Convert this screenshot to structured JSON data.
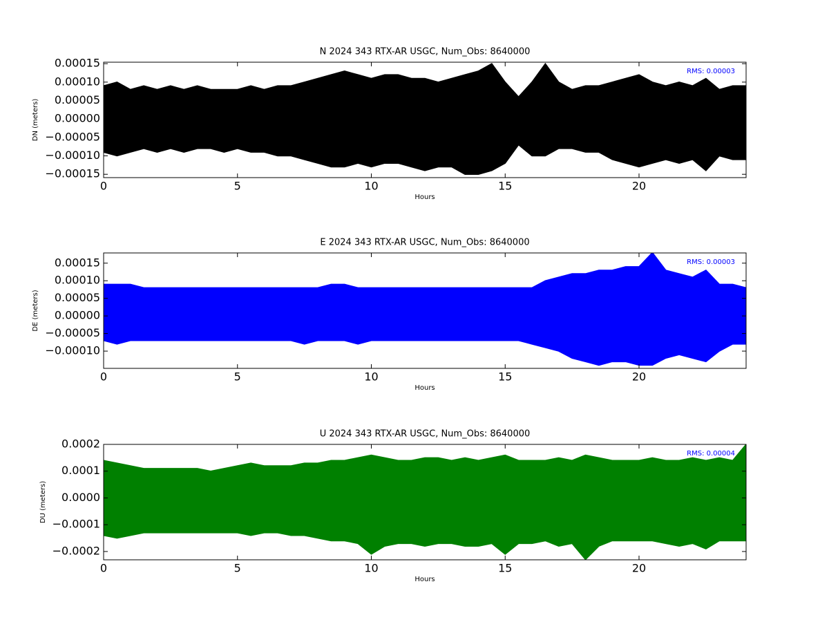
{
  "chart_data": [
    {
      "type": "line",
      "title": "N 2024 343 RTX-AR  USGC, Num_Obs: 8640000",
      "xlabel": "Hours",
      "ylabel": "DN (meters)",
      "annotation": "RMS:  0.00003",
      "x": [
        0,
        0.5,
        1,
        1.5,
        2,
        2.5,
        3,
        3.5,
        4,
        4.5,
        5,
        5.5,
        6,
        6.5,
        7,
        7.5,
        8,
        8.5,
        9,
        9.5,
        10,
        10.5,
        11,
        11.5,
        12,
        12.5,
        13,
        13.5,
        14,
        14.5,
        15,
        15.5,
        16,
        16.5,
        17,
        17.5,
        18,
        18.5,
        19,
        19.5,
        20,
        20.5,
        21,
        21.5,
        22,
        22.5,
        23,
        23.5,
        24
      ],
      "series": [
        {
          "color": "#000000",
          "values": [
            9e-05,
            0.0001,
            8e-05,
            9e-05,
            8e-05,
            9e-05,
            8e-05,
            9e-05,
            8e-05,
            8e-05,
            8e-05,
            9e-05,
            8e-05,
            9e-05,
            9e-05,
            0.0001,
            0.00011,
            0.00012,
            0.00013,
            0.00012,
            0.00011,
            0.00012,
            0.00012,
            0.00011,
            0.00011,
            0.0001,
            0.00011,
            0.00012,
            0.00013,
            0.00015,
            0.0001,
            6e-05,
            0.0001,
            0.00015,
            0.0001,
            8e-05,
            9e-05,
            9e-05,
            0.0001,
            0.00011,
            0.00012,
            0.0001,
            9e-05,
            0.0001,
            9e-05,
            0.00011,
            8e-05,
            9e-05,
            9e-05
          ]
        },
        {
          "color": "#000000",
          "values": [
            -9e-05,
            -0.0001,
            -9e-05,
            -8e-05,
            -9e-05,
            -8e-05,
            -9e-05,
            -8e-05,
            -8e-05,
            -9e-05,
            -8e-05,
            -9e-05,
            -9e-05,
            -0.0001,
            -0.0001,
            -0.00011,
            -0.00012,
            -0.00013,
            -0.00013,
            -0.00012,
            -0.00013,
            -0.00012,
            -0.00012,
            -0.00013,
            -0.00014,
            -0.00013,
            -0.00013,
            -0.00015,
            -0.00015,
            -0.00014,
            -0.00012,
            -7e-05,
            -0.0001,
            -0.0001,
            -8e-05,
            -8e-05,
            -9e-05,
            -9e-05,
            -0.00011,
            -0.00012,
            -0.00013,
            -0.00012,
            -0.00011,
            -0.00012,
            -0.00011,
            -0.00014,
            -0.0001,
            -0.00011,
            -0.00011
          ]
        }
      ],
      "xlim": [
        0,
        24
      ],
      "ylim": [
        -0.000159,
        0.000154
      ],
      "xticks": [
        0,
        5,
        10,
        15,
        20
      ],
      "yticks": [
        {
          "value": -0.00015,
          "label": "−0.00015"
        },
        {
          "value": -0.0001,
          "label": "−0.00010"
        },
        {
          "value": -5e-05,
          "label": "−0.00005"
        },
        {
          "value": 0,
          "label": "0.00000"
        },
        5e-05,
        {
          "value": 0.0001,
          "label": "0.00010"
        },
        0.00015
      ]
    },
    {
      "type": "line",
      "title": "E 2024 343 RTX-AR  USGC, Num_Obs: 8640000",
      "xlabel": "Hours",
      "ylabel": "DE (meters)",
      "annotation": "RMS:  0.00003",
      "x": [
        0,
        0.5,
        1,
        1.5,
        2,
        2.5,
        3,
        3.5,
        4,
        4.5,
        5,
        5.5,
        6,
        6.5,
        7,
        7.5,
        8,
        8.5,
        9,
        9.5,
        10,
        10.5,
        11,
        11.5,
        12,
        12.5,
        13,
        13.5,
        14,
        14.5,
        15,
        15.5,
        16,
        16.5,
        17,
        17.5,
        18,
        18.5,
        19,
        19.5,
        20,
        20.5,
        21,
        21.5,
        22,
        22.5,
        23,
        23.5,
        24
      ],
      "series": [
        {
          "color": "#0000ff",
          "values": [
            9e-05,
            9e-05,
            9e-05,
            8e-05,
            8e-05,
            8e-05,
            8e-05,
            8e-05,
            8e-05,
            8e-05,
            8e-05,
            8e-05,
            8e-05,
            8e-05,
            8e-05,
            8e-05,
            8e-05,
            9e-05,
            9e-05,
            8e-05,
            8e-05,
            8e-05,
            8e-05,
            8e-05,
            8e-05,
            8e-05,
            8e-05,
            8e-05,
            8e-05,
            8e-05,
            8e-05,
            8e-05,
            8e-05,
            0.0001,
            0.00011,
            0.00012,
            0.00012,
            0.00013,
            0.00013,
            0.00014,
            0.00014,
            0.00018,
            0.00013,
            0.00012,
            0.00011,
            0.00013,
            9e-05,
            9e-05,
            8e-05
          ]
        },
        {
          "color": "#0000ff",
          "values": [
            -7e-05,
            -8e-05,
            -7e-05,
            -7e-05,
            -7e-05,
            -7e-05,
            -7e-05,
            -7e-05,
            -7e-05,
            -7e-05,
            -7e-05,
            -7e-05,
            -7e-05,
            -7e-05,
            -7e-05,
            -8e-05,
            -7e-05,
            -7e-05,
            -7e-05,
            -8e-05,
            -7e-05,
            -7e-05,
            -7e-05,
            -7e-05,
            -7e-05,
            -7e-05,
            -7e-05,
            -7e-05,
            -7e-05,
            -7e-05,
            -7e-05,
            -7e-05,
            -8e-05,
            -9e-05,
            -0.0001,
            -0.00012,
            -0.00013,
            -0.00014,
            -0.00013,
            -0.00013,
            -0.00014,
            -0.00014,
            -0.00012,
            -0.00011,
            -0.00012,
            -0.00013,
            -0.0001,
            -8e-05,
            -8e-05
          ]
        }
      ],
      "xlim": [
        0,
        24
      ],
      "ylim": [
        -0.000149,
        0.000179
      ],
      "xticks": [
        0,
        5,
        10,
        15,
        20
      ],
      "yticks": [
        {
          "value": -0.0001,
          "label": "−0.00010"
        },
        {
          "value": -5e-05,
          "label": "−0.00005"
        },
        {
          "value": 0,
          "label": "0.00000"
        },
        5e-05,
        {
          "value": 0.0001,
          "label": "0.00010"
        },
        0.00015
      ]
    },
    {
      "type": "line",
      "title": "U 2024 343 RTX-AR  USGC, Num_Obs: 8640000",
      "xlabel": "Hours",
      "ylabel": "DU (meters)",
      "annotation": "RMS:  0.00004",
      "x": [
        0,
        0.5,
        1,
        1.5,
        2,
        2.5,
        3,
        3.5,
        4,
        4.5,
        5,
        5.5,
        6,
        6.5,
        7,
        7.5,
        8,
        8.5,
        9,
        9.5,
        10,
        10.5,
        11,
        11.5,
        12,
        12.5,
        13,
        13.5,
        14,
        14.5,
        15,
        15.5,
        16,
        16.5,
        17,
        17.5,
        18,
        18.5,
        19,
        19.5,
        20,
        20.5,
        21,
        21.5,
        22,
        22.5,
        23,
        23.5,
        24
      ],
      "series": [
        {
          "color": "#008000",
          "values": [
            0.00014,
            0.00013,
            0.00012,
            0.00011,
            0.00011,
            0.00011,
            0.00011,
            0.00011,
            0.0001,
            0.00011,
            0.00012,
            0.00013,
            0.00012,
            0.00012,
            0.00012,
            0.00013,
            0.00013,
            0.00014,
            0.00014,
            0.00015,
            0.00016,
            0.00015,
            0.00014,
            0.00014,
            0.00015,
            0.00015,
            0.00014,
            0.00015,
            0.00014,
            0.00015,
            0.00016,
            0.00014,
            0.00014,
            0.00014,
            0.00015,
            0.00014,
            0.00016,
            0.00015,
            0.00014,
            0.00014,
            0.00014,
            0.00015,
            0.00014,
            0.00014,
            0.00015,
            0.00014,
            0.00015,
            0.00014,
            0.0002
          ]
        },
        {
          "color": "#008000",
          "values": [
            -0.00014,
            -0.00015,
            -0.00014,
            -0.00013,
            -0.00013,
            -0.00013,
            -0.00013,
            -0.00013,
            -0.00013,
            -0.00013,
            -0.00013,
            -0.00014,
            -0.00013,
            -0.00013,
            -0.00014,
            -0.00014,
            -0.00015,
            -0.00016,
            -0.00016,
            -0.00017,
            -0.00021,
            -0.00018,
            -0.00017,
            -0.00017,
            -0.00018,
            -0.00017,
            -0.00017,
            -0.00018,
            -0.00018,
            -0.00017,
            -0.00021,
            -0.00017,
            -0.00017,
            -0.00016,
            -0.00018,
            -0.00017,
            -0.00023,
            -0.00018,
            -0.00016,
            -0.00016,
            -0.00016,
            -0.00016,
            -0.00017,
            -0.00018,
            -0.00017,
            -0.00019,
            -0.00016,
            -0.00016,
            -0.00016
          ]
        }
      ],
      "xlim": [
        0,
        24
      ],
      "ylim": [
        -0.000231,
        0.0002
      ],
      "xticks": [
        0,
        5,
        10,
        15,
        20
      ],
      "yticks": [
        {
          "value": -0.0002,
          "label": "−0.0002"
        },
        {
          "value": -0.0001,
          "label": "−0.0001"
        },
        {
          "value": 0,
          "label": "0.0000"
        },
        0.0001,
        0.0002
      ]
    }
  ]
}
